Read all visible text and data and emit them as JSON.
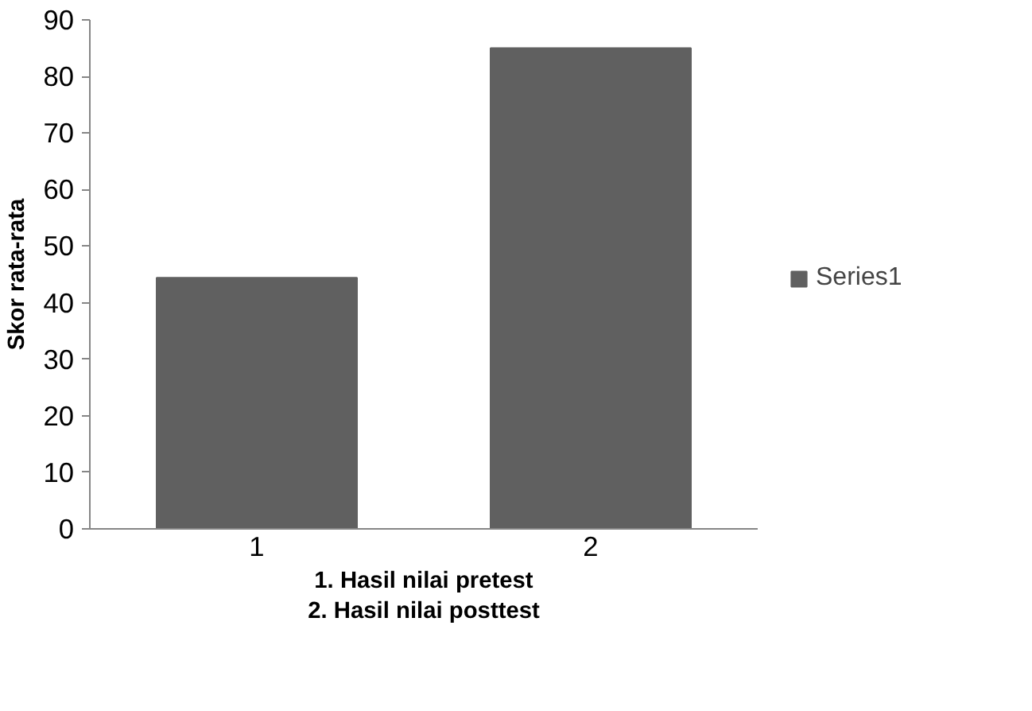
{
  "chart_data": {
    "type": "bar",
    "categories": [
      "1",
      "2"
    ],
    "series": [
      {
        "name": "Series1",
        "color": "#606060",
        "values": [
          44.4,
          85
        ]
      }
    ],
    "ylabel": "Skor rata-rata",
    "xlabel": "1. Hasil nilai pretest\n2. Hasil nilai posttest",
    "ylim": [
      0,
      90
    ],
    "yticks": [
      0,
      10,
      20,
      30,
      40,
      50,
      60,
      70,
      80,
      90
    ],
    "grid": false,
    "legend": "right"
  }
}
